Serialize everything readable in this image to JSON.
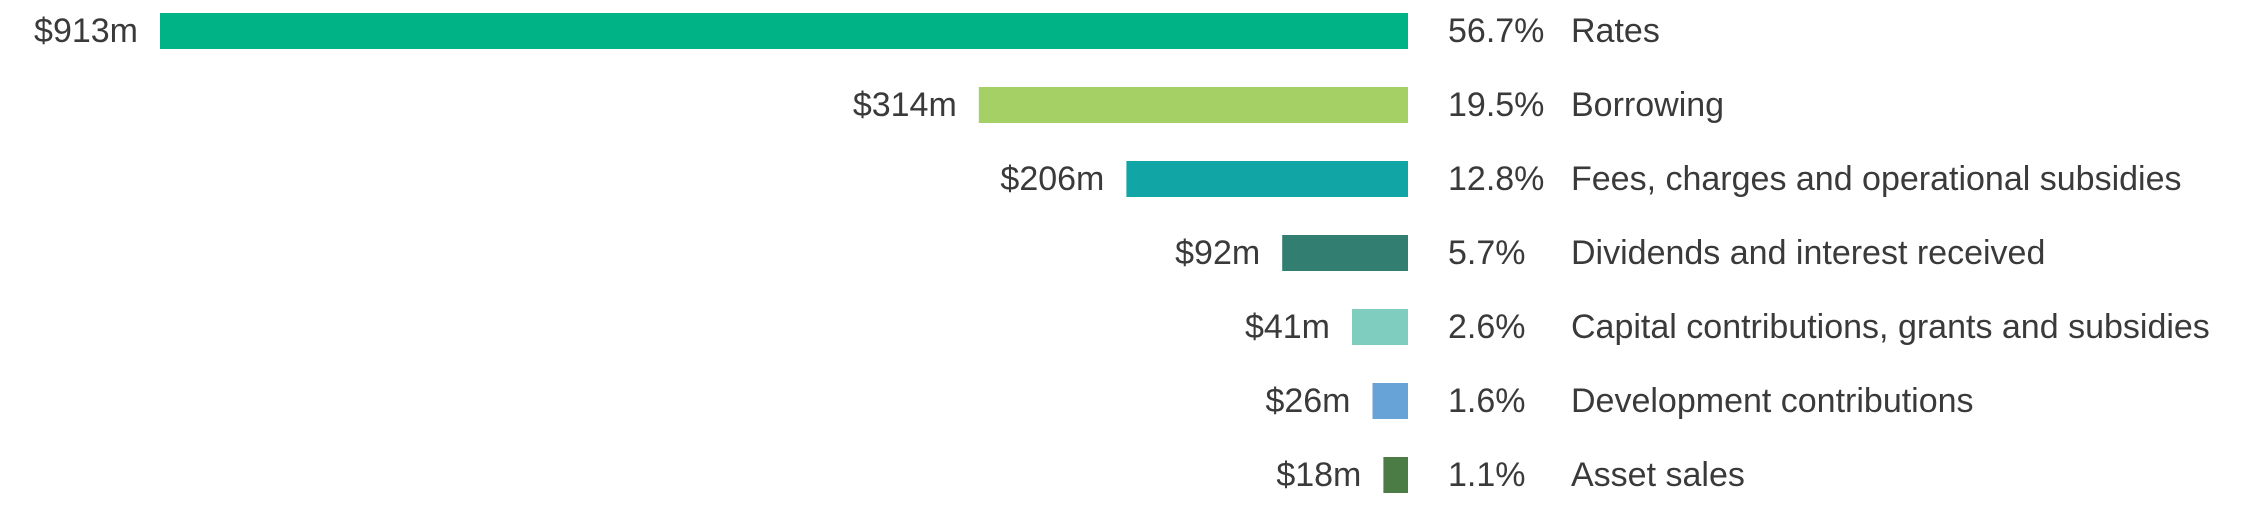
{
  "chart_data": {
    "type": "bar",
    "orientation": "horizontal",
    "categories": [
      "Rates",
      "Borrowing",
      "Fees, charges and operational subsidies",
      "Dividends and interest received",
      "Capital contributions, grants and subsidies",
      "Development contributions",
      "Asset sales"
    ],
    "values": [
      913,
      314,
      206,
      92,
      41,
      26,
      18
    ],
    "value_labels": [
      "$913m",
      "$314m",
      "$206m",
      "$92m",
      "$41m",
      "$26m",
      "$18m"
    ],
    "percent_labels": [
      "56.7%",
      "19.5%",
      "12.8%",
      "5.7%",
      "2.6%",
      "1.6%",
      "1.1%"
    ],
    "colors": [
      "#00b386",
      "#a4d065",
      "#12a5a6",
      "#327f71",
      "#7ecdbf",
      "#67a3d6",
      "#4c7c45"
    ],
    "xlim": [
      0,
      913
    ],
    "grid": false,
    "legend": "none"
  }
}
